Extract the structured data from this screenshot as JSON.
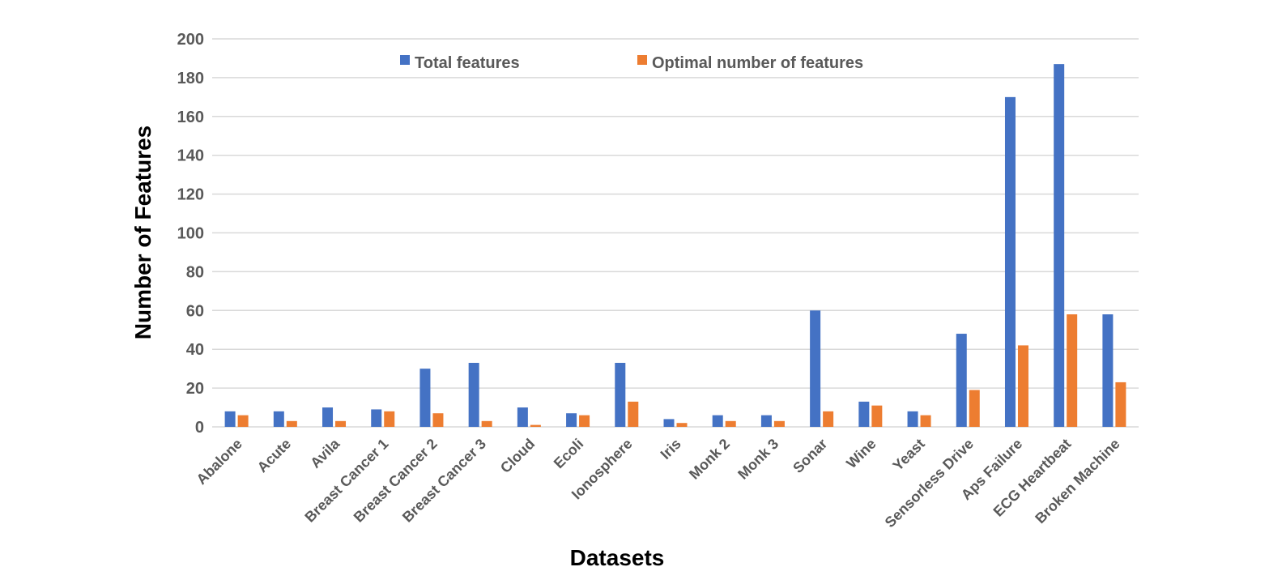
{
  "chart_data": {
    "type": "bar",
    "xlabel": "Datasets",
    "ylabel": "Number of Features",
    "ylim": [
      0,
      200
    ],
    "yticks": [
      0,
      20,
      40,
      60,
      80,
      100,
      120,
      140,
      160,
      180,
      200
    ],
    "grid": true,
    "legend_position": "top-center",
    "categories": [
      "Abalone",
      "Acute",
      "Avila",
      "Breast Cancer 1",
      "Breast Cancer 2",
      "Breast Cancer 3",
      "Cloud",
      "Ecoli",
      "Ionosphere",
      "Iris",
      "Monk 2",
      "Monk 3",
      "Sonar",
      "Wine",
      "Yeast",
      "Sensorless Drive",
      "Aps Failure",
      "ECG Heartbeat",
      "Broken Machine"
    ],
    "series": [
      {
        "name": "Total features",
        "color": "#4472C4",
        "values": [
          8,
          8,
          10,
          9,
          30,
          33,
          10,
          7,
          33,
          4,
          6,
          6,
          60,
          13,
          8,
          48,
          170,
          187,
          58
        ]
      },
      {
        "name": "Optimal number of features",
        "color": "#ED7D31",
        "values": [
          6,
          3,
          3,
          8,
          7,
          3,
          1,
          6,
          13,
          2,
          3,
          3,
          8,
          11,
          6,
          19,
          42,
          58,
          23
        ]
      }
    ]
  }
}
